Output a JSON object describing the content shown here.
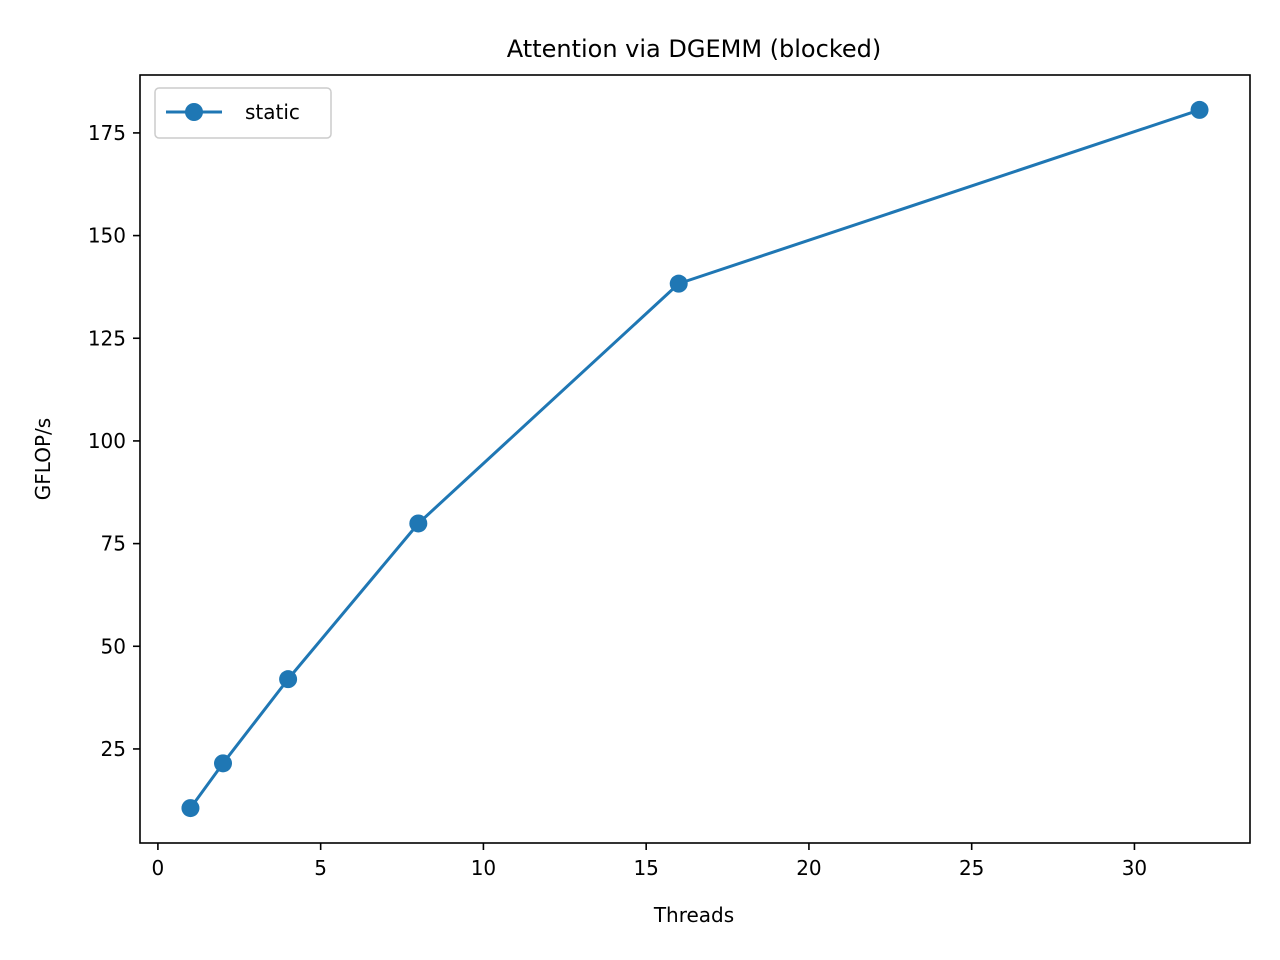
{
  "chart_data": {
    "type": "line",
    "title": "Attention via DGEMM (blocked)",
    "xlabel": "Threads",
    "ylabel": "GFLOP/s",
    "x": [
      1,
      2,
      4,
      8,
      16,
      32
    ],
    "series": [
      {
        "name": "static",
        "values": [
          10.6,
          21.5,
          42.0,
          79.9,
          138.3,
          180.6
        ],
        "color": "#1f77b4",
        "marker": "circle"
      }
    ],
    "xlim": [
      -0.55,
      33.55
    ],
    "ylim": [
      2.1,
      189.1
    ],
    "xticks": [
      0,
      5,
      10,
      15,
      20,
      25,
      30
    ],
    "yticks": [
      25,
      50,
      75,
      100,
      125,
      150,
      175
    ],
    "xtick_labels": [
      "0",
      "5",
      "10",
      "15",
      "20",
      "25",
      "30"
    ],
    "ytick_labels": [
      "25",
      "50",
      "75",
      "100",
      "125",
      "150",
      "175"
    ],
    "grid": false,
    "legend_position": "top-left"
  }
}
